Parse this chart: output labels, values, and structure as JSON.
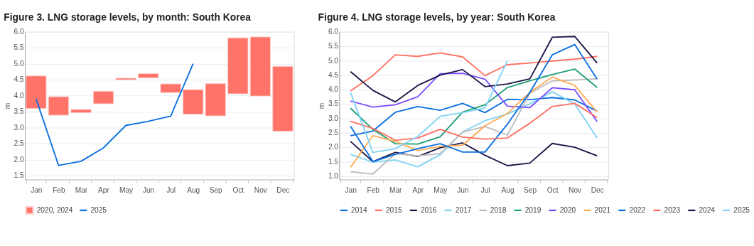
{
  "chart_data": [
    {
      "type": "bar",
      "title": "Figure 3.  LNG storage levels, by month: South Korea",
      "ylabel": "m",
      "categories": [
        "Jan",
        "Feb",
        "Mar",
        "Apr",
        "May",
        "Jun",
        "Jul",
        "Aug",
        "Sep",
        "Oct",
        "Nov",
        "Dec"
      ],
      "series": [
        {
          "name": "2025",
          "type": "line",
          "color": "#0a6fe0",
          "values": [
            3.9,
            1.82,
            1.95,
            2.37,
            3.07,
            3.2,
            3.36,
            5.0,
            null,
            null,
            null,
            null
          ]
        },
        {
          "name": "2020, 2024",
          "type": "bar",
          "color": "#ff7369",
          "base": [
            3.6,
            3.39,
            3.47,
            3.75,
            4.5,
            4.56,
            4.1,
            3.42,
            3.37,
            4.06,
            3.99,
            2.89
          ],
          "values": [
            1.02,
            0.58,
            0.1,
            0.39,
            0.05,
            0.13,
            0.27,
            0.77,
            1.01,
            1.75,
            1.85,
            2.03
          ]
        }
      ],
      "ylim": [
        1.38,
        6.0
      ],
      "yticks": [
        {
          "value": 1.5,
          "label": "1.5"
        },
        {
          "value": 2,
          "label": "2.0"
        },
        {
          "value": 2.5,
          "label": "2.5"
        },
        {
          "value": 3,
          "label": "3.0"
        },
        {
          "value": 3.5,
          "label": "3.5"
        },
        {
          "value": 4,
          "label": "4.0"
        },
        {
          "value": 4.5,
          "label": "4.5"
        },
        {
          "value": 5,
          "label": "5.0"
        },
        {
          "value": 5.5,
          "label": "5.5"
        },
        {
          "value": 6,
          "label": "6.0"
        }
      ],
      "grid": "y",
      "legend": "bottom",
      "line_style": "solid"
    },
    {
      "type": "line",
      "title": "Figure 4.  LNG storage levels, by year: South Korea",
      "ylabel": "m",
      "categories": [
        "Jan",
        "Feb",
        "Mar",
        "Apr",
        "May",
        "Jun",
        "Jul",
        "Aug",
        "Sep",
        "Oct",
        "Nov",
        "Dec"
      ],
      "series": [
        {
          "name": "2014",
          "color": "#0a6fe0",
          "values": [
            2.4,
            2.56,
            3.21,
            3.41,
            3.28,
            3.52,
            3.2,
            3.66,
            3.65,
            3.72,
            3.64,
            3.25
          ]
        },
        {
          "name": "2015",
          "color": "#ff6f61",
          "values": [
            3.95,
            4.48,
            5.2,
            5.15,
            5.27,
            5.13,
            4.48,
            4.86,
            4.92,
            4.99,
            5.05,
            5.15
          ]
        },
        {
          "name": "2016",
          "color": "#1b1646",
          "values": [
            2.2,
            1.5,
            1.82,
            1.68,
            1.98,
            2.15,
            1.72,
            1.36,
            1.45,
            2.13,
            2.0,
            1.7
          ]
        },
        {
          "name": "2017",
          "color": "#7fd3f5",
          "values": [
            1.75,
            1.48,
            1.56,
            1.32,
            1.74,
            2.53,
            2.92,
            3.15,
            3.5,
            3.92,
            3.5,
            2.32
          ]
        },
        {
          "name": "2018",
          "color": "#bdbdbd",
          "values": [
            1.15,
            1.07,
            1.78,
            1.7,
            1.78,
            2.52,
            2.72,
            2.42,
            3.87,
            4.3,
            4.33,
            4.37
          ]
        },
        {
          "name": "2019",
          "color": "#1f9e78",
          "values": [
            3.35,
            2.62,
            2.12,
            2.11,
            2.36,
            3.22,
            3.47,
            4.07,
            4.3,
            4.52,
            4.71,
            4.07
          ]
        },
        {
          "name": "2020",
          "color": "#7b4cff",
          "values": [
            3.6,
            3.39,
            3.47,
            3.75,
            4.55,
            4.56,
            4.36,
            3.42,
            3.37,
            4.06,
            3.99,
            2.89
          ]
        },
        {
          "name": "2021",
          "color": "#ffaa55",
          "values": [
            1.3,
            2.4,
            2.2,
            1.88,
            2.03,
            2.07,
            2.74,
            3.17,
            3.9,
            4.43,
            4.14,
            3.22
          ]
        },
        {
          "name": "2022",
          "color": "#0a6fe0",
          "values": [
            2.73,
            1.5,
            1.75,
            1.95,
            2.12,
            1.83,
            1.83,
            2.8,
            3.9,
            5.2,
            5.56,
            4.36
          ]
        },
        {
          "name": "2023",
          "color": "#ff6f61",
          "values": [
            2.9,
            2.65,
            2.24,
            2.32,
            2.62,
            2.35,
            2.28,
            2.32,
            2.83,
            3.41,
            3.52,
            3.03
          ]
        },
        {
          "name": "2024",
          "color": "#1b1646",
          "values": [
            4.62,
            3.97,
            3.57,
            4.14,
            4.5,
            4.69,
            4.1,
            4.19,
            4.37,
            5.81,
            5.84,
            4.92
          ]
        },
        {
          "name": "2025",
          "color": "#7fd3f5",
          "values": [
            3.9,
            1.82,
            1.95,
            2.37,
            3.07,
            3.2,
            3.36,
            5.0,
            null,
            null,
            null,
            null
          ]
        }
      ],
      "ylim": [
        0.88,
        6.0
      ],
      "yticks": [
        {
          "value": 1,
          "label": "1.0"
        },
        {
          "value": 1.5,
          "label": "1.5"
        },
        {
          "value": 2,
          "label": "2.0"
        },
        {
          "value": 2.5,
          "label": "2.5"
        },
        {
          "value": 3,
          "label": "3.0"
        },
        {
          "value": 3.5,
          "label": "3.5"
        },
        {
          "value": 4,
          "label": "4.0"
        },
        {
          "value": 4.5,
          "label": "4.5"
        },
        {
          "value": 5,
          "label": "5.0"
        },
        {
          "value": 5.5,
          "label": "5.5"
        },
        {
          "value": 6,
          "label": "6.0"
        }
      ],
      "grid": "y",
      "legend": "bottom",
      "line_style": "solid"
    }
  ]
}
